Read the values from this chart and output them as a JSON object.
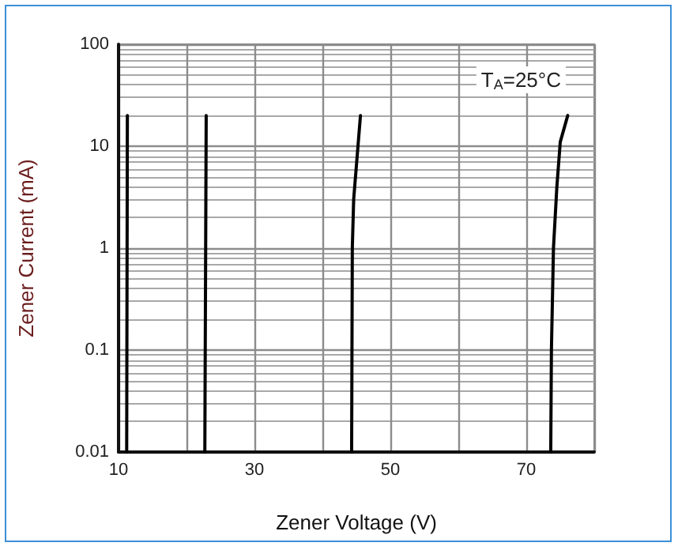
{
  "chart_data": {
    "type": "line",
    "xlabel": "Zener Voltage (V)",
    "ylabel": "Zener Current (mA)",
    "annotations": [
      "T$_{A}$=25°C"
    ],
    "xlim": [
      10,
      80
    ],
    "xticks": [
      10,
      {
        "value": 20,
        "label": null
      },
      30,
      {
        "value": 40,
        "label": null
      },
      50,
      {
        "value": 60,
        "label": null
      },
      70,
      {
        "value": 80,
        "label": null
      }
    ],
    "ylim": [
      0.01,
      100
    ],
    "yticks": [
      0.01,
      0.1,
      1,
      10,
      100
    ],
    "log": "y",
    "grid": true,
    "marker": "none",
    "line_style": "solid",
    "series": [
      {
        "color": "#000000",
        "x": [
          11.2,
          11.3
        ],
        "values": [
          0.01,
          20
        ]
      },
      {
        "color": "#000000",
        "x": [
          22.7,
          22.9
        ],
        "values": [
          0.01,
          20
        ]
      },
      {
        "color": "#000000",
        "x": [
          44.3,
          44.4,
          44.6,
          45.6
        ],
        "values": [
          0.01,
          1,
          3,
          20
        ]
      },
      {
        "color": "#000000",
        "x": [
          73.6,
          73.7,
          74.0,
          74.5,
          75.0,
          76.1
        ],
        "values": [
          0.01,
          0.1,
          1,
          4,
          11,
          20
        ]
      }
    ]
  }
}
